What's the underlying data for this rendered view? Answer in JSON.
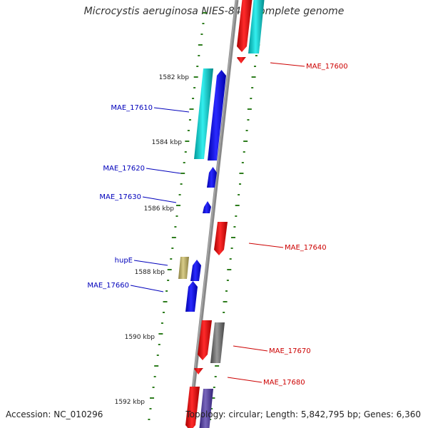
{
  "title": "Microcystis aeruginosa NIES-843, complete genome",
  "footer": {
    "accession": "Accession: NC_010296",
    "summary": "Topology: circular; Length: 5,842,795 bp; Genes: 6,360"
  },
  "colors": {
    "backbone": "#888888",
    "tick": "#2e7d1e",
    "kbp_text": "#222222",
    "forward_gene": "#0000ee",
    "forward_cds": "#00cccc",
    "reverse_gene": "#ee0000",
    "reverse_cds": "#00cccc",
    "other_forward": "#bbae66",
    "other_reverse": "#666666",
    "purple": "#554499",
    "label_forward": "#0000bb",
    "label_reverse": "#cc0000"
  },
  "kbp_labels": [
    "1582 kbp",
    "1584 kbp",
    "1586 kbp",
    "1588 kbp",
    "1590 kbp",
    "1592 kbp"
  ],
  "gene_labels_left": [
    "MAE_17610",
    "MAE_17620",
    "MAE_17630",
    "hupE",
    "MAE_17660"
  ],
  "gene_labels_right": [
    "MAE_17600",
    "MAE_17640",
    "MAE_17670",
    "MAE_17680"
  ]
}
